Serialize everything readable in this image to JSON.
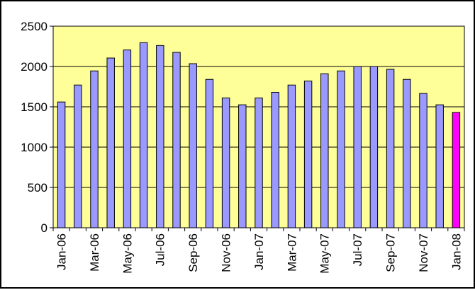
{
  "chart_data": {
    "type": "bar",
    "title": "",
    "xlabel": "",
    "ylabel": "",
    "ylim": [
      0,
      2500
    ],
    "yticks": [
      0,
      500,
      1000,
      1500,
      2000,
      2500
    ],
    "grid": "horizontal",
    "legend": "none",
    "categories": [
      "Jan-06",
      "Feb-06",
      "Mar-06",
      "Apr-06",
      "May-06",
      "Jun-06",
      "Jul-06",
      "Aug-06",
      "Sep-06",
      "Oct-06",
      "Nov-06",
      "Dec-06",
      "Jan-07",
      "Feb-07",
      "Mar-07",
      "Apr-07",
      "May-07",
      "Jun-07",
      "Jul-07",
      "Aug-07",
      "Sep-07",
      "Oct-07",
      "Nov-07",
      "Dec-07",
      "Jan-08"
    ],
    "tick_labels": [
      "Jan-06",
      "",
      "Mar-06",
      "",
      "May-06",
      "",
      "Jul-06",
      "",
      "Sep-06",
      "",
      "Nov-06",
      "",
      "Jan-07",
      "",
      "Mar-07",
      "",
      "May-07",
      "",
      "Jul-07",
      "",
      "Sep-07",
      "",
      "Nov-07",
      "",
      "Jan-08"
    ],
    "series": [
      {
        "values": [
          1560,
          1770,
          1945,
          2105,
          2205,
          2295,
          2260,
          2175,
          2035,
          1840,
          1610,
          1525,
          1610,
          1680,
          1770,
          1820,
          1910,
          1945,
          2000,
          2000,
          1965,
          1840,
          1665,
          1525,
          1430
        ]
      }
    ],
    "colors": {
      "plot_background": "#ffff99",
      "bar_fill": "#9999ff",
      "highlight_fill": "#ff00ff",
      "bar_stroke": "#000000",
      "gridline": "#000000"
    },
    "highlight_index": 24
  }
}
